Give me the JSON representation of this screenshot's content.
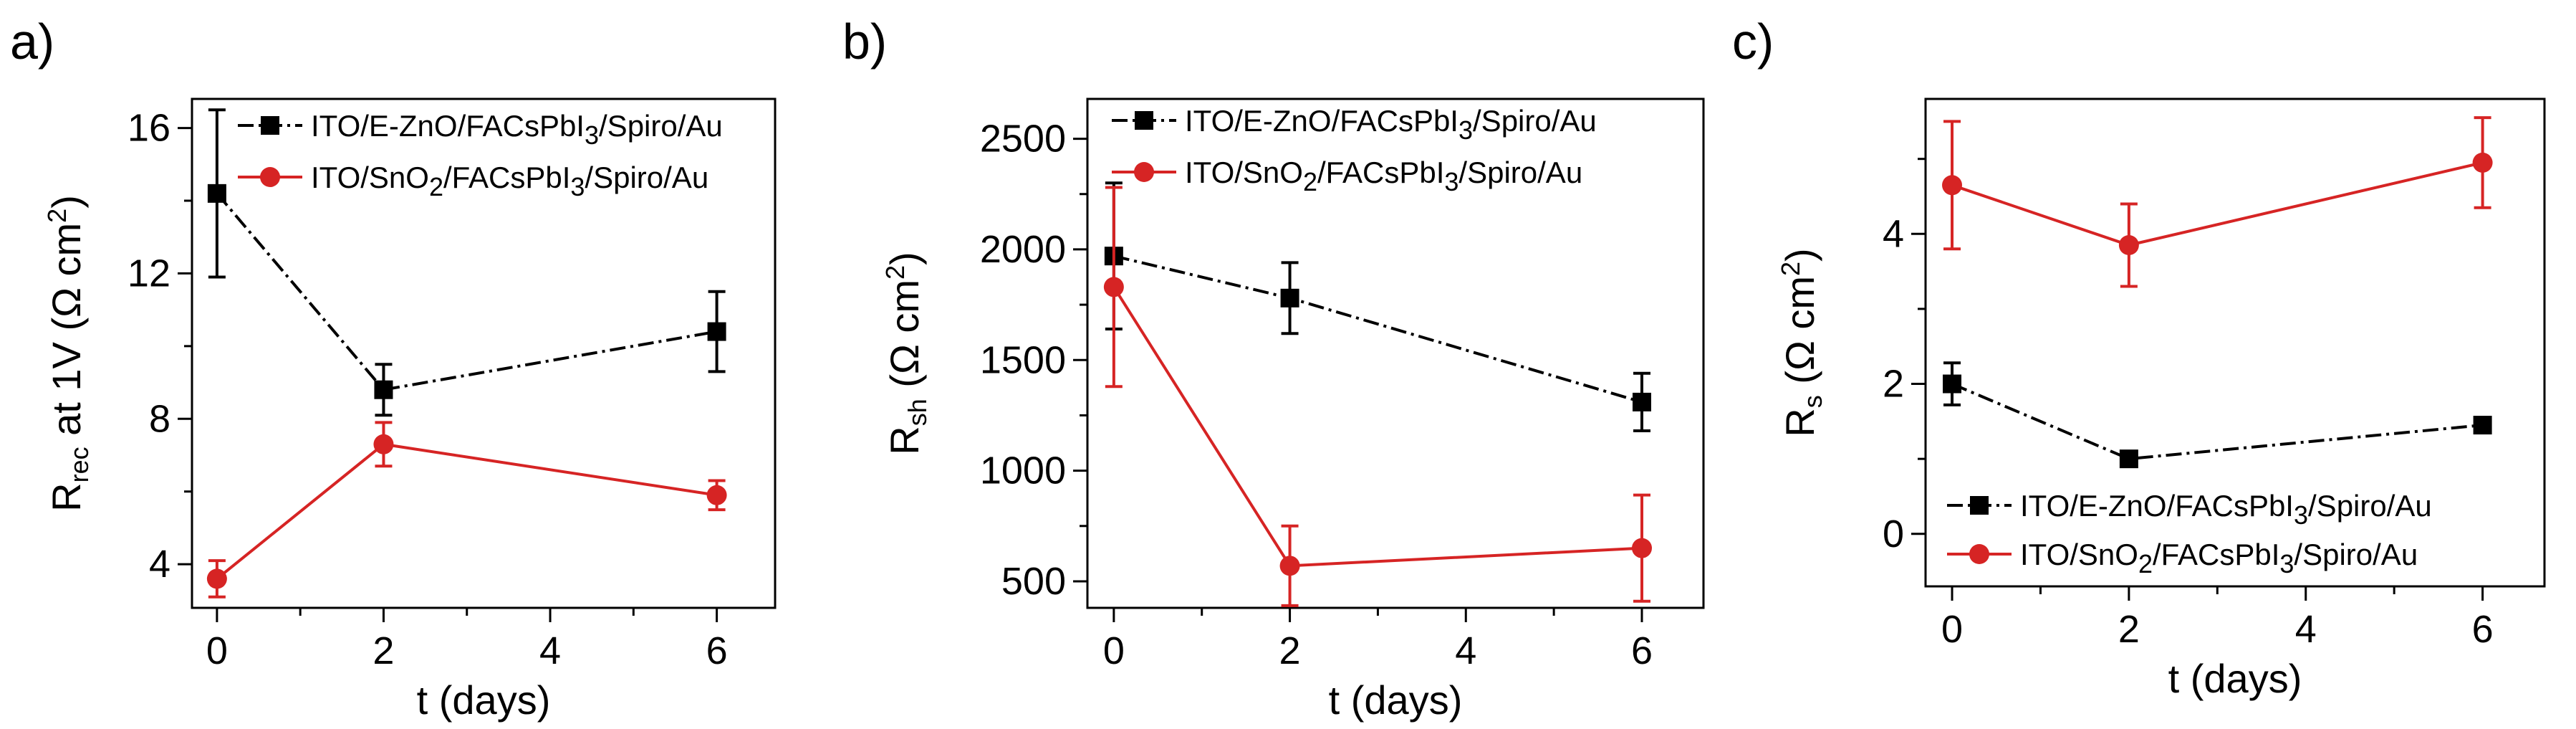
{
  "chart_data": [
    {
      "panel": "a)",
      "type": "line",
      "xlabel": "t (days)",
      "ylabel": {
        "main": "R",
        "sub": "rec",
        "rest": "  at 1V (Ω cm",
        "sup": "2",
        "end": ")"
      },
      "xlim": [
        -0.3,
        6.7
      ],
      "ylim": [
        2.8,
        16.8
      ],
      "xticks": [
        0,
        2,
        4,
        6
      ],
      "yticks": [
        4,
        8,
        12,
        16
      ],
      "legend_position": "top-right",
      "series": [
        {
          "name": "ITO/E-ZnO/FACsPbI3/Spiro/Au",
          "legend": {
            "pre": "ITO/E-ZnO/FACsPbI",
            "sub": "3",
            "post": "/Spiro/Au"
          },
          "color": "#000000",
          "marker": "square",
          "x": [
            0,
            2,
            6
          ],
          "y": [
            14.2,
            8.8,
            10.4
          ],
          "err": [
            2.3,
            0.7,
            1.1
          ]
        },
        {
          "name": "ITO/SnO2/FACsPbI3/Spiro/Au",
          "legend": {
            "pre": "ITO/SnO",
            "sub": "2",
            "mid": "/FACsPbI",
            "sub2": "3",
            "post": "/Spiro/Au"
          },
          "color": "#d62424",
          "marker": "circle",
          "x": [
            0,
            2,
            6
          ],
          "y": [
            3.6,
            7.3,
            5.9
          ],
          "err": [
            0.5,
            0.6,
            0.4
          ]
        }
      ]
    },
    {
      "panel": "b)",
      "type": "line",
      "xlabel": "t (days)",
      "ylabel": {
        "main": "R",
        "sub": "sh",
        "rest": " (Ω cm",
        "sup": "2",
        "end": ")"
      },
      "xlim": [
        -0.3,
        6.7
      ],
      "ylim": [
        380,
        2680
      ],
      "xticks": [
        0,
        2,
        4,
        6
      ],
      "yticks": [
        500,
        1000,
        1500,
        2000,
        2500
      ],
      "legend_position": "top-right",
      "series": [
        {
          "name": "ITO/E-ZnO/FACsPbI3/Spiro/Au",
          "legend": {
            "pre": "ITO/E-ZnO/FACsPbI",
            "sub": "3",
            "post": "/Spiro/Au"
          },
          "color": "#000000",
          "marker": "square",
          "x": [
            0,
            2,
            6
          ],
          "y": [
            1970,
            1780,
            1310
          ],
          "err": [
            330,
            160,
            130
          ]
        },
        {
          "name": "ITO/SnO2/FACsPbI3/Spiro/Au",
          "legend": {
            "pre": "ITO/SnO",
            "sub": "2",
            "mid": "/FACsPbI",
            "sub2": "3",
            "post": "/Spiro/Au"
          },
          "color": "#d62424",
          "marker": "circle",
          "x": [
            0,
            2,
            6
          ],
          "y": [
            1830,
            570,
            650
          ],
          "err": [
            450,
            180,
            240
          ]
        }
      ]
    },
    {
      "panel": "c)",
      "type": "line",
      "xlabel": "t (days)",
      "ylabel": {
        "main": "R",
        "sub": "s",
        "rest": " (Ω cm",
        "sup": "2",
        "end": ")"
      },
      "xlim": [
        -0.3,
        6.7
      ],
      "ylim": [
        -0.7,
        5.8
      ],
      "xticks": [
        0,
        2,
        4,
        6
      ],
      "yticks": [
        0,
        2,
        4
      ],
      "legend_position": "bottom-left",
      "series": [
        {
          "name": "ITO/E-ZnO/FACsPbI3/Spiro/Au",
          "legend": {
            "pre": "ITO/E-ZnO/FACsPbI",
            "sub": "3",
            "post": "/Spiro/Au"
          },
          "color": "#000000",
          "marker": "square",
          "x": [
            0,
            2,
            6
          ],
          "y": [
            2.0,
            1.0,
            1.45
          ],
          "err": [
            0.28,
            0.06,
            0.06
          ]
        },
        {
          "name": "ITO/SnO2/FACsPbI3/Spiro/Au",
          "legend": {
            "pre": "ITO/SnO",
            "sub": "2",
            "mid": "/FACsPbI",
            "sub2": "3",
            "post": "/Spiro/Au"
          },
          "color": "#d62424",
          "marker": "circle",
          "x": [
            0,
            2,
            6
          ],
          "y": [
            4.65,
            3.85,
            4.95
          ],
          "err": [
            0.85,
            0.55,
            0.6
          ]
        }
      ]
    }
  ]
}
